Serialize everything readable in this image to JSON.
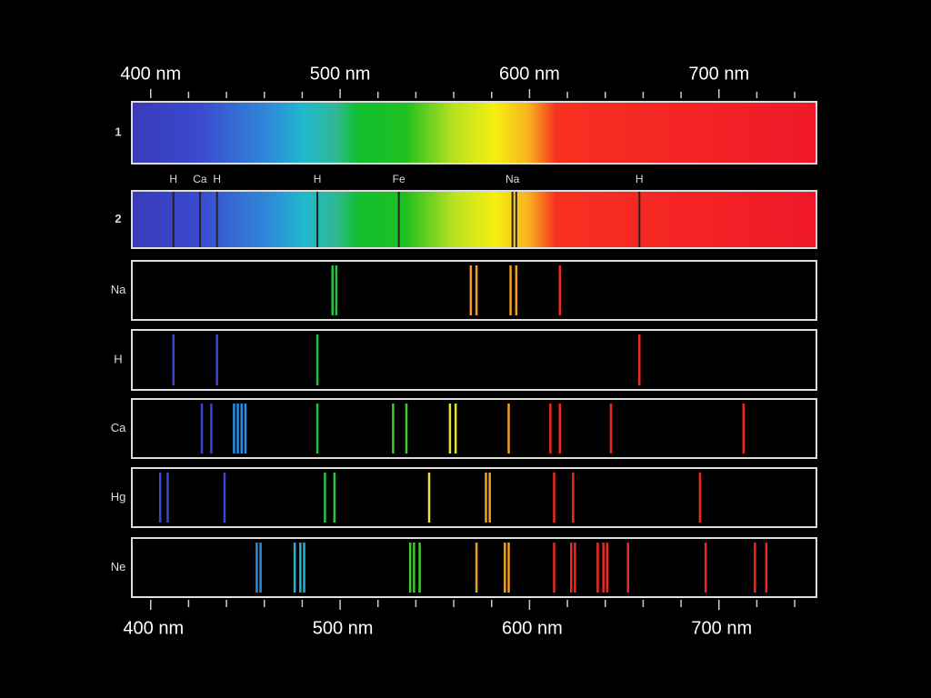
{
  "axis": {
    "range": [
      391,
      751
    ],
    "top_labels": [
      {
        "value": 400,
        "label": "400 nm"
      },
      {
        "value": 500,
        "label": "500 nm"
      },
      {
        "value": 600,
        "label": "600 nm"
      },
      {
        "value": 700,
        "label": "700 nm"
      }
    ],
    "bottom_labels": [
      {
        "value": 400,
        "label": "400 nm"
      },
      {
        "value": 500,
        "label": "500 nm"
      },
      {
        "value": 600,
        "label": "600 nm"
      },
      {
        "value": 700,
        "label": "700 nm"
      }
    ],
    "ticks": [
      400,
      420,
      440,
      460,
      480,
      500,
      520,
      540,
      560,
      580,
      600,
      620,
      640,
      660,
      680,
      700,
      720,
      740
    ]
  },
  "rows": [
    {
      "label": "1"
    },
    {
      "label": "2",
      "absorption": [
        {
          "label": "H",
          "lines": [
            412
          ]
        },
        {
          "label": "Ca",
          "lines": [
            426
          ]
        },
        {
          "label": "H",
          "lines": [
            435
          ]
        },
        {
          "label": "H",
          "lines": [
            488
          ]
        },
        {
          "label": "Fe",
          "lines": [
            531
          ]
        },
        {
          "label": "Na",
          "lines": [
            591,
            593
          ]
        },
        {
          "label": "H",
          "lines": [
            658
          ]
        }
      ]
    },
    {
      "label": "Na",
      "lines": [
        496,
        498,
        569,
        572,
        590,
        593,
        616
      ]
    },
    {
      "label": "H",
      "lines": [
        412,
        435,
        488,
        658
      ]
    },
    {
      "label": "Ca",
      "lines": [
        427,
        432,
        444,
        446,
        448,
        450,
        488,
        528,
        535,
        558,
        561,
        589,
        611,
        616,
        643,
        713
      ]
    },
    {
      "label": "Hg",
      "lines": [
        405,
        409,
        439,
        492,
        497,
        547,
        577,
        579,
        613,
        623,
        690
      ]
    },
    {
      "label": "Ne",
      "lines": [
        456,
        458,
        476,
        479,
        481,
        537,
        539,
        542,
        572,
        587,
        589,
        613,
        622,
        624,
        636,
        639,
        641,
        652,
        693,
        719,
        725
      ]
    }
  ]
}
